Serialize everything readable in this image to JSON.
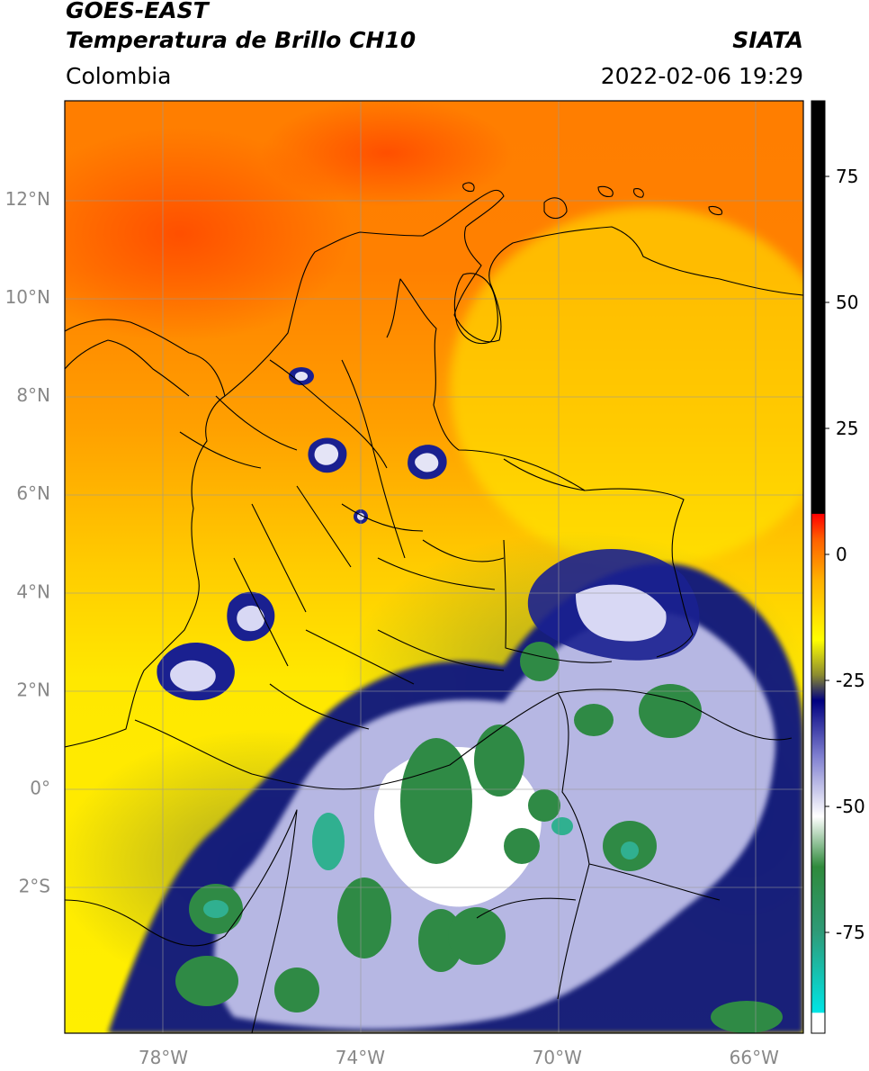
{
  "header": {
    "satellite": "GOES-EAST",
    "product": "Temperatura de Brillo CH10",
    "organization": "SIATA",
    "region": "Colombia",
    "datetime": "2022-02-06 19:29"
  },
  "map": {
    "lon_range": [
      -80,
      -65
    ],
    "lat_range": [
      -5,
      14
    ],
    "lon_ticks": [
      {
        "value": -78,
        "label": "78°W"
      },
      {
        "value": -74,
        "label": "74°W"
      },
      {
        "value": -70,
        "label": "70°W"
      },
      {
        "value": -66,
        "label": "66°W"
      }
    ],
    "lat_ticks": [
      {
        "value": 12,
        "label": "12°N"
      },
      {
        "value": 10,
        "label": "10°N"
      },
      {
        "value": 8,
        "label": "8°N"
      },
      {
        "value": 6,
        "label": "6°N"
      },
      {
        "value": 4,
        "label": "4°N"
      },
      {
        "value": 2,
        "label": "2°N"
      },
      {
        "value": 0,
        "label": "0°"
      },
      {
        "value": -2,
        "label": "2°S"
      }
    ]
  },
  "colorbar": {
    "range": [
      -95,
      90
    ],
    "ticks": [
      {
        "value": 75,
        "label": "75"
      },
      {
        "value": 50,
        "label": "50"
      },
      {
        "value": 25,
        "label": "25"
      },
      {
        "value": 0,
        "label": "0"
      },
      {
        "value": -25,
        "label": "-25"
      },
      {
        "value": -50,
        "label": "-50"
      },
      {
        "value": -75,
        "label": "-75"
      }
    ],
    "stops": [
      {
        "value": -95,
        "color": "#ffffff"
      },
      {
        "value": -91,
        "color": "#ffffff"
      },
      {
        "value": -90.9,
        "color": "#00e5e5"
      },
      {
        "value": -75,
        "color": "#2e9b78"
      },
      {
        "value": -62,
        "color": "#2f8a3c"
      },
      {
        "value": -52,
        "color": "#ffffff"
      },
      {
        "value": -40,
        "color": "#7f7fd0"
      },
      {
        "value": -29,
        "color": "#000080"
      },
      {
        "value": -24,
        "color": "#8a8a30"
      },
      {
        "value": -17,
        "color": "#ffff00"
      },
      {
        "value": -5,
        "color": "#ffb000"
      },
      {
        "value": 3,
        "color": "#ff6000"
      },
      {
        "value": 8,
        "color": "#ff0000"
      },
      {
        "value": 8.1,
        "color": "#000000"
      },
      {
        "value": 90,
        "color": "#000000"
      }
    ]
  },
  "colors": {
    "cold_ocean_orange": "#ff7a00",
    "warm_red": "#ff4500",
    "yellow": "#ffee00",
    "olive": "#8f8f2a",
    "navy": "#0a1080",
    "white": "#ffffff",
    "green": "#2f8a45",
    "teal": "#2aa58a",
    "gridline": "#999999"
  }
}
